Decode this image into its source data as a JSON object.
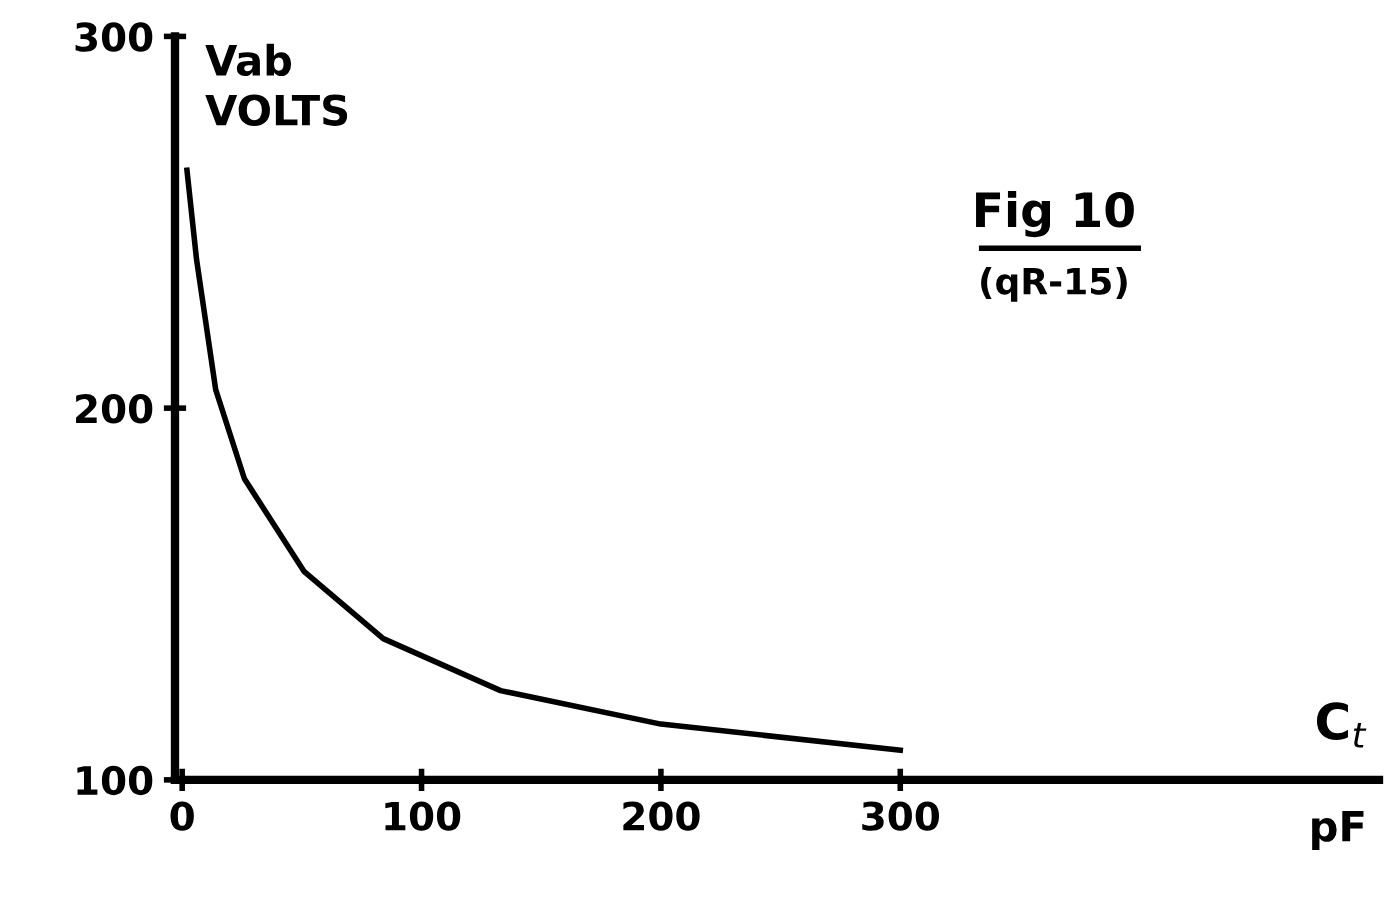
{
  "chart_data": {
    "type": "line",
    "title": "Fig 10",
    "subtitle": "(qR-15)",
    "ylabel": "Vab\nVOLTS",
    "xlabel": "C$_{t}$",
    "annotations": [
      "pF"
    ],
    "x": [
      2,
      6,
      14,
      26,
      51,
      84,
      133,
      200,
      300
    ],
    "series": [
      {
        "color": "#000000",
        "values": [
          264,
          240,
          205,
          181,
          156,
          138,
          124,
          115,
          108
        ]
      }
    ],
    "xlim": [
      -3,
      500
    ],
    "ylim": [
      100,
      300
    ],
    "xticks": [
      0,
      100,
      200,
      300
    ],
    "yticks": [
      100,
      200,
      300
    ],
    "grid": false,
    "legend": false,
    "marker": "none",
    "line_style": "solid"
  }
}
